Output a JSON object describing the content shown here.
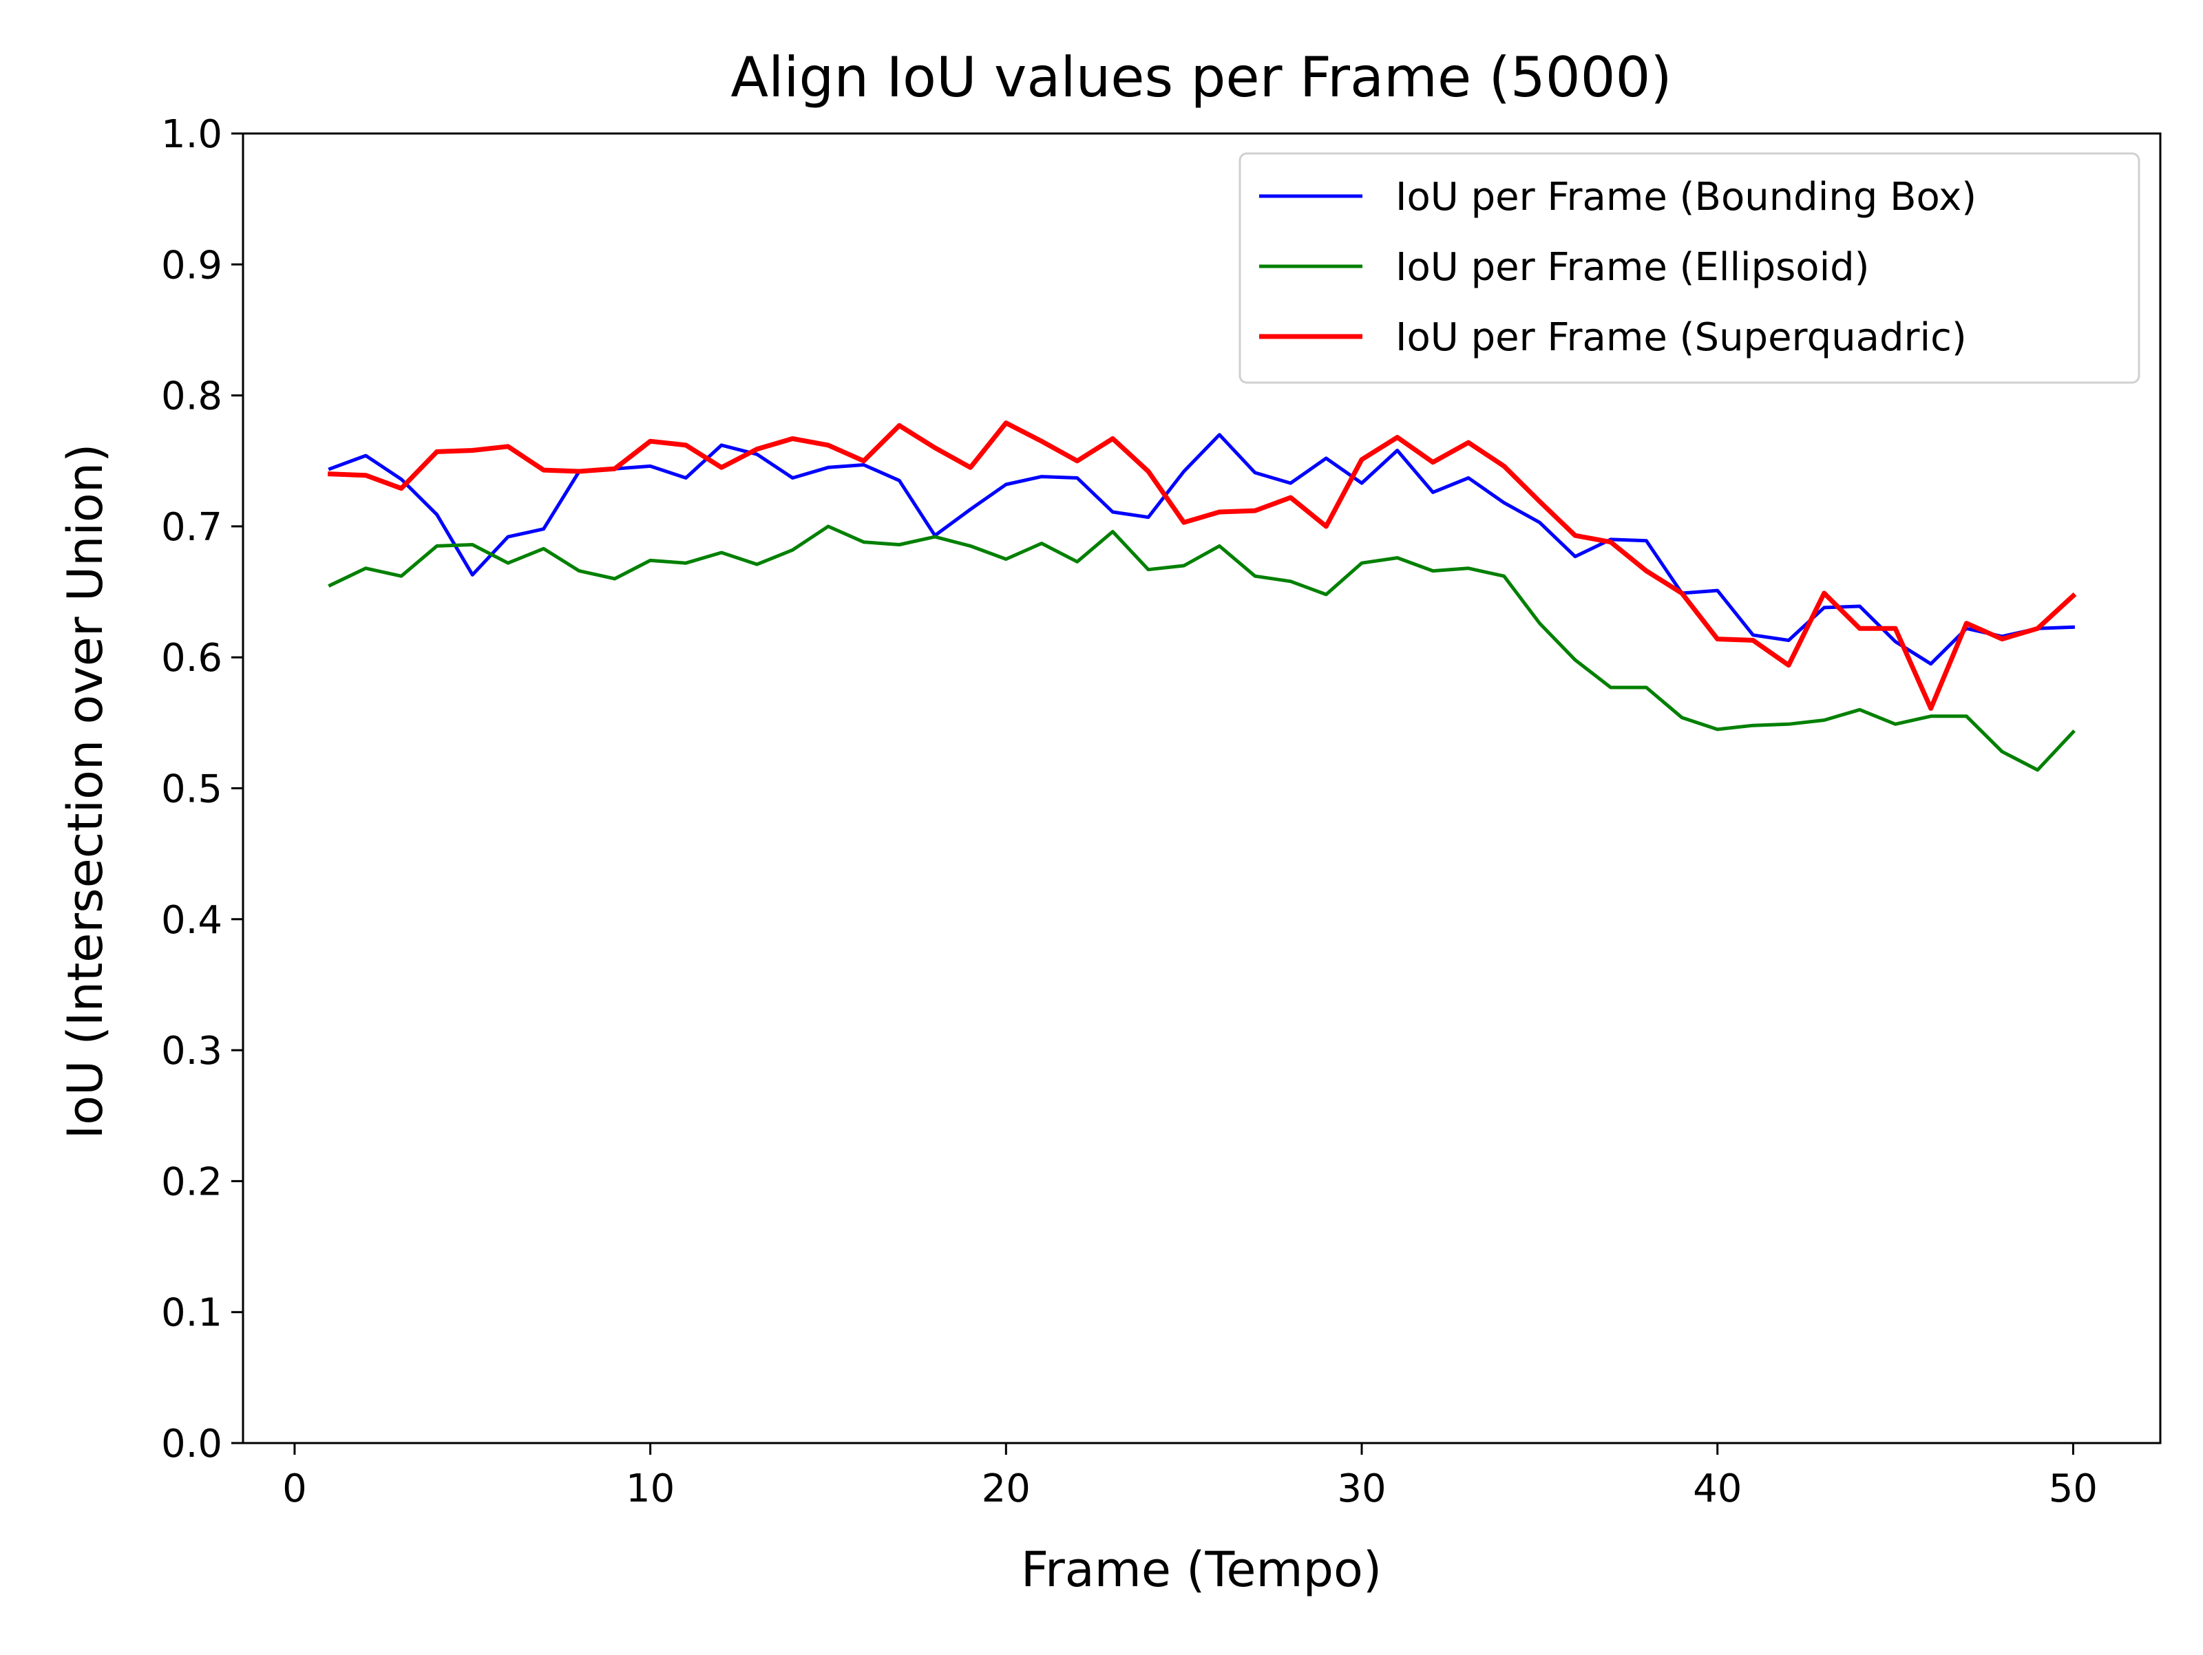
{
  "chart_data": {
    "type": "line",
    "title": "Align IoU values per Frame (5000)",
    "xlabel": "Frame (Tempo)",
    "ylabel": "IoU (Intersection over Union)",
    "xlim": [
      -1.45,
      52.45
    ],
    "ylim": [
      0.0,
      1.0
    ],
    "xticks": [
      0,
      10,
      20,
      30,
      40,
      50
    ],
    "xtick_labels": [
      "0",
      "10",
      "20",
      "30",
      "40",
      "50"
    ],
    "yticks": [
      0.0,
      0.1,
      0.2,
      0.3,
      0.4,
      0.5,
      0.6,
      0.7,
      0.8,
      0.9,
      1.0
    ],
    "ytick_labels": [
      "0.0",
      "0.1",
      "0.2",
      "0.3",
      "0.4",
      "0.5",
      "0.6",
      "0.7",
      "0.8",
      "0.9",
      "1.0"
    ],
    "grid": false,
    "legend_position": "top-right",
    "x": [
      1,
      2,
      3,
      4,
      5,
      6,
      7,
      8,
      9,
      10,
      11,
      12,
      13,
      14,
      15,
      16,
      17,
      18,
      19,
      20,
      21,
      22,
      23,
      24,
      25,
      26,
      27,
      28,
      29,
      30,
      31,
      32,
      33,
      34,
      35,
      36,
      37,
      38,
      39,
      40,
      41,
      42,
      43,
      44,
      45,
      46,
      47,
      48,
      49,
      50
    ],
    "series": [
      {
        "name": "IoU per Frame (Bounding Box)",
        "color": "#0000ff",
        "values": [
          0.744,
          0.754,
          0.736,
          0.709,
          0.663,
          0.692,
          0.698,
          0.742,
          0.744,
          0.746,
          0.737,
          0.762,
          0.755,
          0.737,
          0.745,
          0.747,
          0.735,
          0.693,
          0.713,
          0.732,
          0.738,
          0.737,
          0.711,
          0.707,
          0.742,
          0.77,
          0.741,
          0.733,
          0.752,
          0.733,
          0.758,
          0.726,
          0.737,
          0.718,
          0.703,
          0.677,
          0.69,
          0.689,
          0.649,
          0.651,
          0.617,
          0.613,
          0.638,
          0.639,
          0.612,
          0.595,
          0.622,
          0.616,
          0.622,
          0.623
        ]
      },
      {
        "name": "IoU per Frame (Ellipsoid)",
        "color": "#008000",
        "values": [
          0.655,
          0.668,
          0.662,
          0.685,
          0.686,
          0.672,
          0.683,
          0.666,
          0.66,
          0.674,
          0.672,
          0.68,
          0.671,
          0.682,
          0.7,
          0.688,
          0.686,
          0.692,
          0.685,
          0.675,
          0.687,
          0.673,
          0.696,
          0.667,
          0.67,
          0.685,
          0.662,
          0.658,
          0.648,
          0.672,
          0.676,
          0.666,
          0.668,
          0.662,
          0.626,
          0.598,
          0.577,
          0.577,
          0.554,
          0.545,
          0.548,
          0.549,
          0.552,
          0.56,
          0.549,
          0.555,
          0.555,
          0.528,
          0.514,
          0.543
        ]
      },
      {
        "name": "IoU per Frame (Superquadric)",
        "color": "#ff0000",
        "values": [
          0.74,
          0.739,
          0.729,
          0.757,
          0.758,
          0.761,
          0.743,
          0.742,
          0.744,
          0.765,
          0.762,
          0.745,
          0.759,
          0.767,
          0.762,
          0.75,
          0.777,
          0.76,
          0.745,
          0.779,
          0.765,
          0.75,
          0.767,
          0.742,
          0.703,
          0.711,
          0.712,
          0.722,
          0.7,
          0.751,
          0.768,
          0.749,
          0.764,
          0.746,
          0.719,
          0.693,
          0.688,
          0.666,
          0.649,
          0.614,
          0.613,
          0.594,
          0.649,
          0.622,
          0.622,
          0.561,
          0.626,
          0.614,
          0.622,
          0.647
        ]
      }
    ]
  }
}
